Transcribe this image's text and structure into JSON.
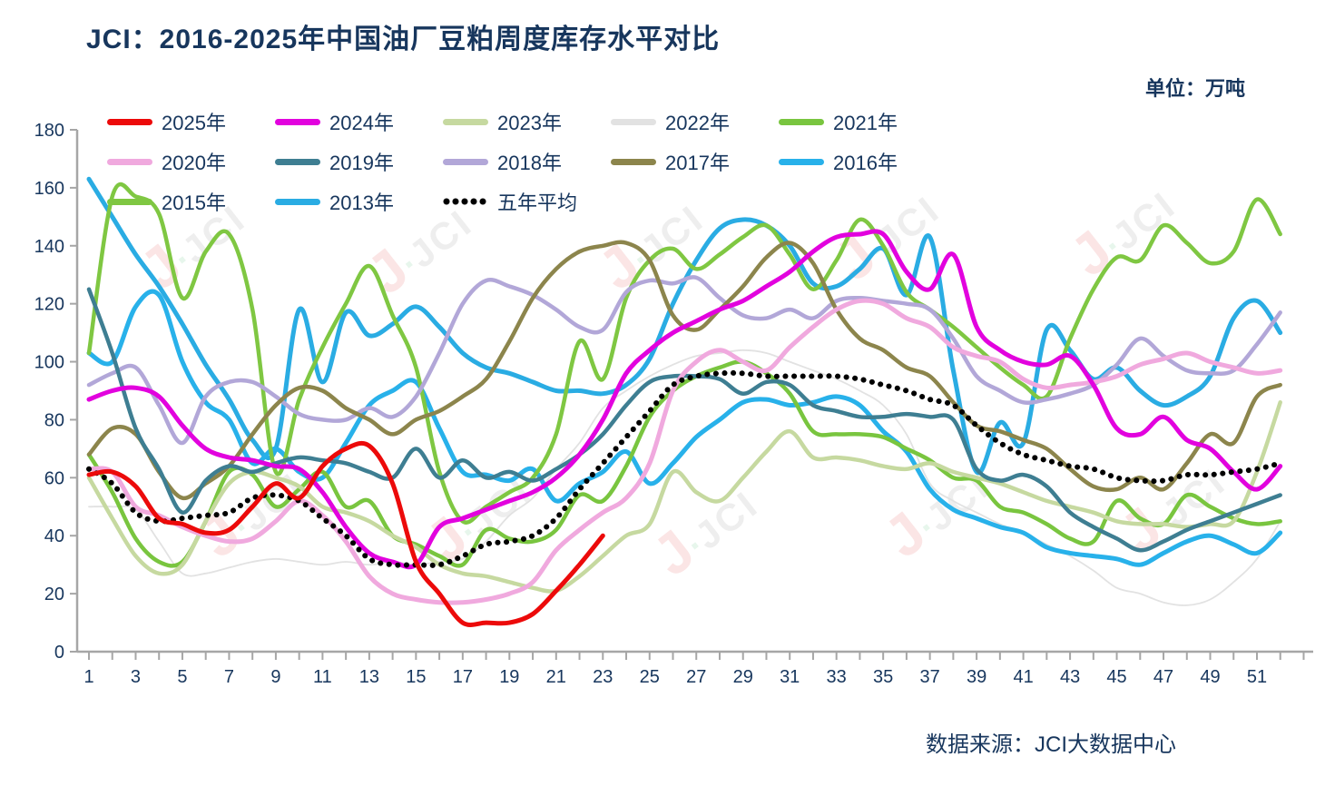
{
  "title": "JCI：2016-2025年中国油厂豆粕周度库存水平对比",
  "unit_label": "单位：万吨",
  "source_label": "数据来源：JCI大数据中心",
  "watermark": {
    "j": "J",
    "dot": "·",
    "text": "JCI"
  },
  "chart_data": {
    "type": "line",
    "x_weeks": 52,
    "x_tick_labels": [
      1,
      3,
      5,
      7,
      9,
      11,
      13,
      15,
      17,
      19,
      21,
      23,
      25,
      27,
      29,
      31,
      33,
      35,
      37,
      39,
      41,
      43,
      45,
      47,
      49,
      51
    ],
    "ylim": [
      0,
      180
    ],
    "yticks": [
      0,
      20,
      40,
      60,
      80,
      100,
      120,
      140,
      160,
      180
    ],
    "grid": false,
    "legend_position": "top-left",
    "axis_color": "#A6A6A6",
    "label_color": "#17365D",
    "series": [
      {
        "name": "2025年",
        "color": "#EC0A0A",
        "width": 5,
        "style": "solid",
        "values": [
          61,
          62,
          57,
          46,
          44,
          41,
          42,
          50,
          58,
          53,
          64,
          70,
          71,
          58,
          31,
          20,
          10,
          10,
          10,
          13,
          21,
          30,
          40
        ]
      },
      {
        "name": "2024年",
        "color": "#E202DE",
        "width": 5,
        "style": "solid",
        "values": [
          87,
          90,
          91,
          88,
          78,
          70,
          67,
          66,
          64,
          63,
          55,
          43,
          34,
          31,
          30,
          43,
          46,
          49,
          52,
          55,
          60,
          68,
          80,
          96,
          104,
          110,
          114,
          118,
          121,
          126,
          131,
          138,
          143,
          144,
          144,
          131,
          125,
          137,
          112,
          104,
          100,
          99,
          102,
          92,
          77,
          75,
          81,
          73,
          70,
          62,
          56,
          64
        ]
      },
      {
        "name": "2023年",
        "color": "#C6D9A0",
        "width": 4.5,
        "style": "solid",
        "values": [
          60,
          46,
          33,
          27,
          30,
          45,
          58,
          62,
          60,
          57,
          50,
          48,
          45,
          40,
          36,
          30,
          27,
          26,
          24,
          22,
          21,
          26,
          33,
          40,
          44,
          62,
          55,
          52,
          60,
          69,
          76,
          67,
          67,
          66,
          64,
          63,
          65,
          62,
          60,
          58,
          55,
          52,
          50,
          48,
          45,
          44,
          44,
          43,
          44,
          45,
          62,
          86
        ]
      },
      {
        "name": "2022年",
        "color": "#E2E2E2",
        "width": 1.8,
        "style": "solid",
        "values": [
          50,
          50,
          49,
          38,
          27,
          27,
          29,
          31,
          32,
          31,
          30,
          31,
          30,
          31,
          30,
          31,
          32,
          38,
          47,
          53,
          63,
          72,
          84,
          90,
          95,
          99,
          102,
          103,
          104,
          103,
          100,
          97,
          94,
          90,
          85,
          75,
          58,
          52,
          48,
          44,
          41,
          37,
          33,
          28,
          22,
          20,
          17,
          16,
          18,
          24,
          32,
          45
        ]
      },
      {
        "name": "2021年",
        "color": "#79C53F",
        "width": 4.5,
        "style": "solid",
        "values": [
          68,
          55,
          39,
          31,
          31,
          45,
          62,
          61,
          50,
          56,
          62,
          50,
          52,
          40,
          37,
          33,
          30,
          42,
          39,
          38,
          42,
          54,
          52,
          64,
          81,
          90,
          95,
          98,
          100,
          96,
          89,
          76,
          75,
          75,
          74,
          70,
          66,
          60,
          59,
          50,
          48,
          44,
          39,
          38,
          52,
          46,
          44,
          54,
          50,
          46,
          44,
          45
        ]
      },
      {
        "name": "2020年",
        "color": "#F0A9DE",
        "width": 5,
        "style": "solid",
        "values": [
          63,
          62,
          50,
          47,
          43,
          40,
          38,
          39,
          45,
          52,
          47,
          38,
          26,
          20,
          18,
          17,
          17,
          18,
          20,
          24,
          35,
          42,
          48,
          53,
          65,
          90,
          100,
          104,
          100,
          97,
          105,
          112,
          118,
          121,
          120,
          115,
          112,
          105,
          102,
          100,
          94,
          91,
          92,
          93,
          95,
          99,
          101,
          103,
          100,
          98,
          96,
          97
        ]
      },
      {
        "name": "2019年",
        "color": "#3E7E92",
        "width": 4.5,
        "style": "solid",
        "values": [
          125,
          103,
          77,
          63,
          48,
          59,
          64,
          62,
          65,
          67,
          66,
          65,
          62,
          60,
          70,
          60,
          66,
          60,
          62,
          59,
          63,
          68,
          75,
          85,
          93,
          95,
          95,
          94,
          89,
          93,
          92,
          85,
          83,
          81,
          81,
          82,
          81,
          80,
          63,
          59,
          61,
          57,
          48,
          43,
          39,
          35,
          38,
          42,
          45,
          48,
          51,
          54
        ]
      },
      {
        "name": "2018年",
        "color": "#B2A7D8",
        "width": 4.5,
        "style": "solid",
        "values": [
          92,
          96,
          98,
          85,
          72,
          88,
          93,
          93,
          88,
          82,
          80,
          80,
          84,
          81,
          88,
          103,
          120,
          128,
          126,
          123,
          118,
          112,
          111,
          124,
          128,
          127,
          129,
          122,
          116,
          115,
          118,
          115,
          121,
          122,
          121,
          120,
          118,
          108,
          95,
          90,
          86,
          87,
          89,
          92,
          99,
          108,
          102,
          97,
          96,
          97,
          106,
          117
        ]
      },
      {
        "name": "2017年",
        "color": "#8C854C",
        "width": 4.5,
        "style": "solid",
        "values": [
          68,
          77,
          75,
          62,
          53,
          58,
          64,
          75,
          85,
          91,
          90,
          84,
          80,
          75,
          80,
          83,
          88,
          94,
          107,
          122,
          132,
          138,
          140,
          141,
          135,
          116,
          111,
          118,
          126,
          136,
          141,
          134,
          118,
          108,
          104,
          98,
          95,
          86,
          78,
          76,
          73,
          70,
          63,
          57,
          56,
          60,
          56,
          65,
          75,
          72,
          88,
          92
        ]
      },
      {
        "name": "2016年",
        "color": "#28B1EA",
        "width": 5,
        "style": "solid",
        "values": [
          103,
          100,
          119,
          123,
          100,
          86,
          80,
          65,
          70,
          62,
          60,
          72,
          85,
          90,
          93,
          77,
          62,
          61,
          59,
          63,
          52,
          58,
          62,
          69,
          58,
          65,
          74,
          80,
          86,
          87,
          85,
          86,
          88,
          85,
          76,
          69,
          56,
          49,
          46,
          43,
          41,
          36,
          34,
          33,
          32,
          30,
          34,
          38,
          40,
          37,
          34,
          41
        ]
      },
      {
        "name": "2015年",
        "color": "#7FC742",
        "width": 4.5,
        "style": "solid",
        "values": [
          103,
          157,
          157,
          151,
          122,
          138,
          144,
          118,
          62,
          87,
          105,
          120,
          133,
          116,
          98,
          62,
          45,
          50,
          55,
          60,
          75,
          107,
          94,
          122,
          135,
          139,
          132,
          137,
          143,
          147,
          137,
          125,
          135,
          149,
          140,
          124,
          118,
          112,
          105,
          98,
          92,
          88,
          108,
          125,
          136,
          135,
          147,
          141,
          134,
          138,
          156,
          144
        ]
      },
      {
        "name": "2013年",
        "color": "#2AACE3",
        "width": 5,
        "style": "solid",
        "values": [
          163,
          150,
          137,
          126,
          113,
          99,
          87,
          73,
          70,
          118,
          93,
          117,
          109,
          113,
          119,
          112,
          103,
          98,
          96,
          93,
          90,
          90,
          89,
          92,
          101,
          120,
          135,
          146,
          149,
          147,
          140,
          127,
          126,
          132,
          139,
          123,
          143,
          97,
          62,
          79,
          72,
          111,
          104,
          94,
          98,
          90,
          85,
          88,
          95,
          115,
          121,
          110
        ]
      },
      {
        "name": "五年平均",
        "color": "#000000",
        "width": 4.3,
        "style": "dotted",
        "values": [
          63,
          58,
          48,
          45,
          46,
          47,
          48,
          53,
          54,
          52,
          46,
          40,
          32,
          30,
          30,
          30,
          33,
          37,
          38,
          40,
          46,
          56,
          65,
          74,
          83,
          92,
          95,
          96,
          96,
          95,
          95,
          95,
          95,
          94,
          92,
          90,
          87,
          85,
          78,
          72,
          68,
          66,
          64,
          63,
          60,
          59,
          59,
          61,
          61,
          62,
          63,
          65
        ]
      }
    ]
  }
}
